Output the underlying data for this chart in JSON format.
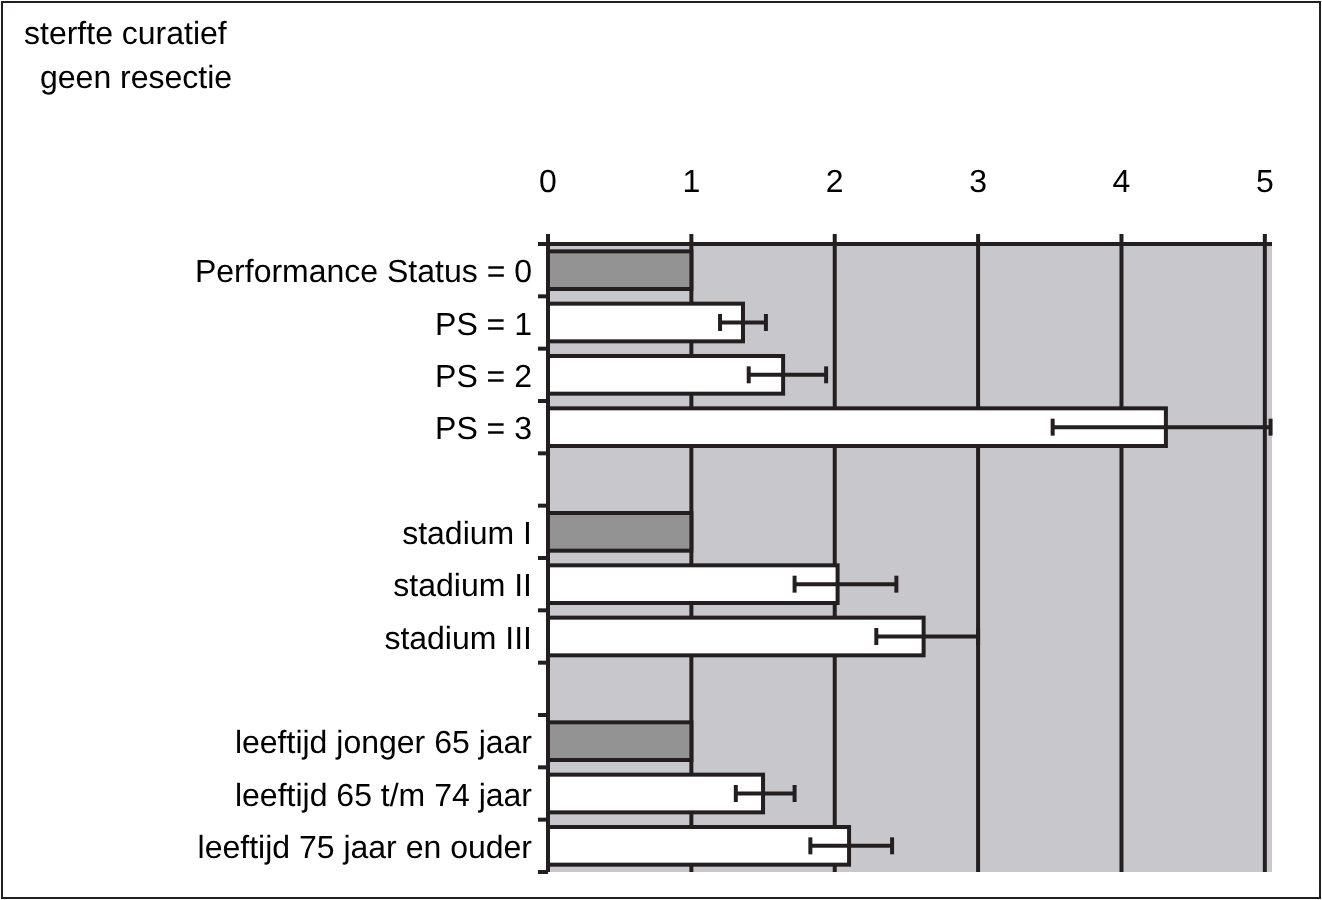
{
  "chart_data": {
    "type": "bar",
    "orientation": "horizontal",
    "title": "sterfte curatief\ngeen resectie",
    "categories": [
      "Performance Status = 0",
      "PS = 1",
      "PS = 2",
      "PS = 3",
      null,
      "stadium I",
      "stadium II",
      "stadium III",
      null,
      "leeftijd jonger 65 jaar",
      "leeftijd 65 t/m 74 jaar",
      "leeftijd 75 jaar en ouder"
    ],
    "values": [
      1,
      1.36,
      1.64,
      4.31,
      null,
      1,
      2.02,
      2.62,
      null,
      1,
      1.5,
      2.1
    ],
    "colors": [
      "#939393",
      "#ffffff",
      "#ffffff",
      "#ffffff",
      null,
      "#939393",
      "#ffffff",
      "#ffffff",
      null,
      "#939393",
      "#ffffff",
      "#ffffff"
    ],
    "errors": [
      null,
      [
        1.2,
        1.52
      ],
      [
        1.4,
        1.94
      ],
      [
        3.52,
        5.04
      ],
      null,
      null,
      [
        1.72,
        2.43
      ],
      [
        2.29,
        3.0
      ],
      null,
      null,
      [
        1.31,
        1.72
      ],
      [
        1.83,
        2.4
      ]
    ],
    "xlim": [
      0,
      5.05
    ],
    "xticks": [
      0,
      1,
      2,
      3,
      4,
      5
    ],
    "grid": "x"
  }
}
